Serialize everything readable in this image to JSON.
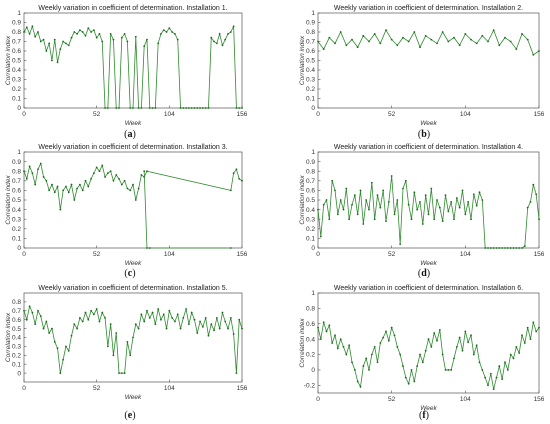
{
  "xlabel": "Week",
  "ylabel": "Correlation index",
  "chart_data": [
    {
      "type": "line",
      "panel": "a",
      "title": "Weekly variation in coefficient of determination. Installation 1.",
      "xlim": [
        0,
        156
      ],
      "ylim": [
        0,
        1
      ],
      "xticks": [
        0,
        52,
        104,
        156
      ],
      "yticks": [
        0,
        0.1,
        0.2,
        0.3,
        0.4,
        0.5,
        0.6,
        0.7,
        0.8,
        0.9,
        1
      ],
      "grid": false,
      "color": "#2e8b2e",
      "series": [
        {
          "x": [
            0,
            2,
            4,
            6,
            8,
            10,
            12,
            14,
            16,
            18,
            20,
            22,
            24,
            26,
            28,
            30,
            32,
            34,
            36,
            38,
            40,
            42,
            44,
            46,
            48,
            50,
            52,
            54,
            56,
            58,
            60,
            62,
            64,
            66,
            68,
            70,
            72,
            74,
            76,
            78,
            80,
            82,
            84,
            86,
            88,
            90,
            92,
            94,
            96,
            98,
            100,
            102,
            104,
            106,
            108,
            110,
            112,
            114,
            116,
            118,
            120,
            122,
            124,
            126,
            128,
            130,
            132,
            134,
            136,
            138,
            140,
            142,
            144,
            146,
            148,
            150,
            152,
            154,
            156
          ],
          "y": [
            0.8,
            0.85,
            0.78,
            0.86,
            0.75,
            0.8,
            0.7,
            0.72,
            0.6,
            0.68,
            0.5,
            0.72,
            0.48,
            0.62,
            0.7,
            0.68,
            0.66,
            0.74,
            0.8,
            0.78,
            0.82,
            0.8,
            0.76,
            0.84,
            0.8,
            0.82,
            0.74,
            0.78,
            0.7,
            0.0,
            0.0,
            0.78,
            0.72,
            0.0,
            0.0,
            0.74,
            0.78,
            0.7,
            0.0,
            0.0,
            0.75,
            0.0,
            0.0,
            0.65,
            0.72,
            0.0,
            0.0,
            0.0,
            0.68,
            0.78,
            0.82,
            0.8,
            0.84,
            0.8,
            0.78,
            0.72,
            0.0,
            0.0,
            0.0,
            0.0,
            0.0,
            0.0,
            0.0,
            0.0,
            0.0,
            0.0,
            0.0,
            0.74,
            0.7,
            0.68,
            0.78,
            0.66,
            0.72,
            0.78,
            0.8,
            0.86,
            0.0,
            0.0,
            0.0
          ]
        }
      ]
    },
    {
      "type": "line",
      "panel": "b",
      "title": "Weekly variation in coefficient of determination. Installation 2.",
      "xlim": [
        0,
        156
      ],
      "ylim": [
        0,
        1
      ],
      "xticks": [
        0,
        52,
        104,
        156
      ],
      "yticks": [
        0,
        0.1,
        0.2,
        0.3,
        0.4,
        0.5,
        0.6,
        0.7,
        0.8,
        0.9,
        1
      ],
      "grid": false,
      "color": "#2e8b2e",
      "series": [
        {
          "x": [
            0,
            4,
            8,
            12,
            16,
            20,
            24,
            28,
            32,
            36,
            40,
            44,
            48,
            52,
            56,
            60,
            64,
            68,
            72,
            76,
            80,
            84,
            88,
            92,
            96,
            100,
            104,
            108,
            112,
            116,
            120,
            124,
            128,
            132,
            136,
            140,
            144,
            148,
            152,
            156
          ],
          "y": [
            0.7,
            0.62,
            0.74,
            0.68,
            0.8,
            0.66,
            0.72,
            0.64,
            0.76,
            0.7,
            0.78,
            0.68,
            0.82,
            0.72,
            0.66,
            0.74,
            0.7,
            0.8,
            0.64,
            0.76,
            0.72,
            0.68,
            0.8,
            0.7,
            0.74,
            0.66,
            0.78,
            0.72,
            0.68,
            0.76,
            0.7,
            0.82,
            0.66,
            0.74,
            0.7,
            0.62,
            0.78,
            0.72,
            0.56,
            0.6
          ]
        }
      ]
    },
    {
      "type": "line",
      "panel": "c",
      "title": "Weekly variation in coefficient of determination. Installation 3.",
      "xlim": [
        0,
        156
      ],
      "ylim": [
        0,
        1
      ],
      "xticks": [
        0,
        52,
        104,
        156
      ],
      "yticks": [
        0,
        0.1,
        0.2,
        0.3,
        0.4,
        0.5,
        0.6,
        0.7,
        0.8,
        0.9,
        1
      ],
      "grid": false,
      "color": "#2e8b2e",
      "series": [
        {
          "x": [
            0,
            2,
            4,
            6,
            8,
            10,
            12,
            14,
            16,
            18,
            20,
            22,
            24,
            26,
            28,
            30,
            32,
            34,
            36,
            38,
            40,
            42,
            44,
            46,
            48,
            50,
            52,
            54,
            56,
            58,
            60,
            62,
            64,
            66,
            68,
            70,
            72,
            74,
            76,
            78,
            80,
            82,
            84,
            86,
            88,
            148,
            150,
            152,
            154,
            156
          ],
          "y": [
            0.8,
            0.72,
            0.85,
            0.78,
            0.66,
            0.82,
            0.88,
            0.74,
            0.7,
            0.6,
            0.66,
            0.58,
            0.64,
            0.4,
            0.6,
            0.64,
            0.58,
            0.66,
            0.5,
            0.62,
            0.66,
            0.6,
            0.7,
            0.64,
            0.72,
            0.78,
            0.84,
            0.8,
            0.86,
            0.74,
            0.78,
            0.8,
            0.7,
            0.76,
            0.72,
            0.66,
            0.7,
            0.62,
            0.6,
            0.66,
            0.5,
            0.62,
            0.76,
            0.74,
            0.8,
            0.6,
            0.78,
            0.82,
            0.72,
            0.7
          ]
        },
        {
          "x": [
            86,
            88,
            90,
            148
          ],
          "y": [
            0.8,
            0.0,
            0.0,
            0.0
          ]
        }
      ]
    },
    {
      "type": "line",
      "panel": "d",
      "title": "Weekly variation in coefficient of determination. Installation 4.",
      "xlim": [
        0,
        156
      ],
      "ylim": [
        0,
        1
      ],
      "xticks": [
        0,
        52,
        104,
        156
      ],
      "yticks": [
        0,
        0.1,
        0.2,
        0.3,
        0.4,
        0.5,
        0.6,
        0.7,
        0.8,
        0.9,
        1
      ],
      "grid": false,
      "color": "#2e8b2e",
      "series": [
        {
          "x": [
            0,
            2,
            4,
            6,
            8,
            10,
            12,
            14,
            16,
            18,
            20,
            22,
            24,
            26,
            28,
            30,
            32,
            34,
            36,
            38,
            40,
            42,
            44,
            46,
            48,
            50,
            52,
            54,
            56,
            58,
            60,
            62,
            64,
            66,
            68,
            70,
            72,
            74,
            76,
            78,
            80,
            82,
            84,
            86,
            88,
            90,
            92,
            94,
            96,
            98,
            100,
            102,
            104,
            106,
            108,
            110,
            112,
            114,
            116,
            118,
            120,
            122,
            124,
            126,
            128,
            130,
            132,
            134,
            136,
            138,
            140,
            142,
            144,
            146,
            148,
            150,
            152,
            154,
            156
          ],
          "y": [
            0.4,
            0.12,
            0.45,
            0.5,
            0.3,
            0.7,
            0.6,
            0.35,
            0.5,
            0.4,
            0.62,
            0.3,
            0.45,
            0.55,
            0.35,
            0.6,
            0.25,
            0.5,
            0.4,
            0.68,
            0.3,
            0.55,
            0.42,
            0.6,
            0.28,
            0.48,
            0.75,
            0.35,
            0.5,
            0.04,
            0.62,
            0.7,
            0.45,
            0.3,
            0.58,
            0.4,
            0.48,
            0.25,
            0.55,
            0.35,
            0.62,
            0.3,
            0.5,
            0.42,
            0.28,
            0.55,
            0.38,
            0.48,
            0.3,
            0.52,
            0.42,
            0.6,
            0.35,
            0.48,
            0.3,
            0.56,
            0.44,
            0.58,
            0.5,
            0.0,
            0.0,
            0.0,
            0.0,
            0.0,
            0.0,
            0.0,
            0.0,
            0.0,
            0.0,
            0.0,
            0.0,
            0.0,
            0.0,
            0.02,
            0.42,
            0.48,
            0.66,
            0.56,
            0.3
          ]
        }
      ]
    },
    {
      "type": "line",
      "panel": "e",
      "title": "Weekly variation in coefficient of determination. Installation 5.",
      "xlim": [
        0,
        156
      ],
      "ylim": [
        -0.1,
        0.9
      ],
      "xticks": [
        0,
        52,
        104,
        156
      ],
      "yticks": [
        0,
        0.1,
        0.2,
        0.3,
        0.4,
        0.5,
        0.6,
        0.7,
        0.8
      ],
      "grid": false,
      "color": "#2e8b2e",
      "series": [
        {
          "x": [
            0,
            2,
            4,
            6,
            8,
            10,
            12,
            14,
            16,
            18,
            20,
            22,
            24,
            26,
            28,
            30,
            32,
            34,
            36,
            38,
            40,
            42,
            44,
            46,
            48,
            50,
            52,
            54,
            56,
            58,
            60,
            62,
            64,
            66,
            68,
            70,
            72,
            74,
            76,
            78,
            80,
            82,
            84,
            86,
            88,
            90,
            92,
            94,
            96,
            98,
            100,
            102,
            104,
            106,
            108,
            110,
            112,
            114,
            116,
            118,
            120,
            122,
            124,
            126,
            128,
            130,
            132,
            134,
            136,
            138,
            140,
            142,
            144,
            146,
            148,
            150,
            152,
            154,
            156
          ],
          "y": [
            0.7,
            0.6,
            0.75,
            0.68,
            0.55,
            0.7,
            0.64,
            0.5,
            0.58,
            0.45,
            0.5,
            0.35,
            0.28,
            0.0,
            0.15,
            0.3,
            0.25,
            0.42,
            0.55,
            0.5,
            0.62,
            0.58,
            0.68,
            0.6,
            0.7,
            0.66,
            0.72,
            0.58,
            0.68,
            0.62,
            0.3,
            0.55,
            0.2,
            0.45,
            0.0,
            0.0,
            0.0,
            0.35,
            0.2,
            0.4,
            0.55,
            0.5,
            0.66,
            0.58,
            0.7,
            0.62,
            0.68,
            0.55,
            0.72,
            0.6,
            0.66,
            0.5,
            0.7,
            0.62,
            0.58,
            0.66,
            0.5,
            0.62,
            0.72,
            0.55,
            0.68,
            0.6,
            0.45,
            0.58,
            0.52,
            0.62,
            0.42,
            0.55,
            0.48,
            0.62,
            0.5,
            0.68,
            0.58,
            0.5,
            0.62,
            0.44,
            0.0,
            0.6,
            0.5
          ]
        }
      ]
    },
    {
      "type": "line",
      "panel": "f",
      "title": "Weekly variation in coefficient of determination. Installation 6.",
      "xlim": [
        0,
        156
      ],
      "ylim": [
        -0.3,
        1
      ],
      "xticks": [
        0,
        52,
        104,
        156
      ],
      "yticks": [
        -0.2,
        0,
        0.2,
        0.4,
        0.6,
        0.8,
        1
      ],
      "grid": false,
      "color": "#2e8b2e",
      "series": [
        {
          "x": [
            0,
            2,
            4,
            6,
            8,
            10,
            12,
            14,
            16,
            18,
            20,
            22,
            24,
            26,
            28,
            30,
            32,
            34,
            36,
            38,
            40,
            42,
            44,
            46,
            48,
            50,
            52,
            54,
            56,
            58,
            60,
            62,
            64,
            66,
            68,
            70,
            72,
            74,
            76,
            78,
            80,
            82,
            84,
            86,
            88,
            90,
            92,
            94,
            96,
            98,
            100,
            102,
            104,
            106,
            108,
            110,
            112,
            114,
            116,
            118,
            120,
            122,
            124,
            126,
            128,
            130,
            132,
            134,
            136,
            138,
            140,
            142,
            144,
            146,
            148,
            150,
            152,
            154,
            156
          ],
          "y": [
            0.55,
            0.4,
            0.62,
            0.5,
            0.58,
            0.35,
            0.45,
            0.28,
            0.4,
            0.3,
            0.2,
            0.32,
            0.1,
            0.0,
            -0.15,
            -0.22,
            0.05,
            0.15,
            0.0,
            0.2,
            0.3,
            0.1,
            0.35,
            0.42,
            0.5,
            0.38,
            0.55,
            0.45,
            0.3,
            0.2,
            0.05,
            -0.1,
            -0.18,
            0.0,
            -0.15,
            0.05,
            0.2,
            0.1,
            0.25,
            0.4,
            0.3,
            0.48,
            0.38,
            0.52,
            0.2,
            0.0,
            0.0,
            0.0,
            0.15,
            0.3,
            0.42,
            0.25,
            0.5,
            0.36,
            0.45,
            0.2,
            0.32,
            0.1,
            0.0,
            -0.1,
            -0.2,
            -0.05,
            -0.25,
            -0.1,
            0.05,
            -0.12,
            0.1,
            0.0,
            0.2,
            0.15,
            0.3,
            0.22,
            0.45,
            0.35,
            0.55,
            0.4,
            0.62,
            0.5,
            0.55
          ]
        }
      ]
    }
  ]
}
